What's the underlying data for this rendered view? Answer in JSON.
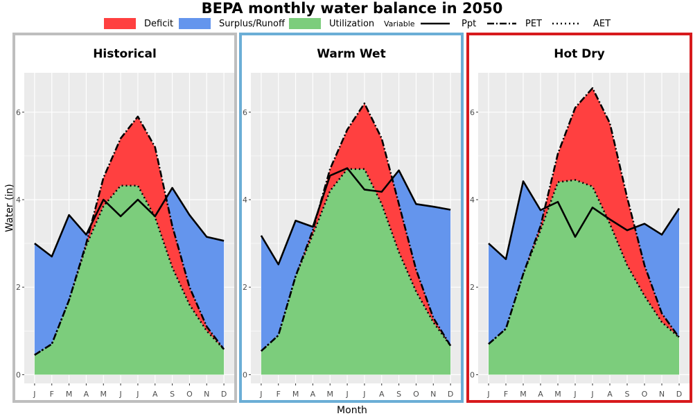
{
  "chart_data": {
    "type": "area",
    "title": "BEPA monthly water balance in 2050",
    "xlabel": "Month",
    "ylabel": "Water (in)",
    "ylim": [
      -0.2,
      6.9
    ],
    "yticks": [
      0,
      2,
      4,
      6
    ],
    "categories": [
      "J",
      "F",
      "M",
      "A",
      "M",
      "J",
      "J",
      "A",
      "S",
      "O",
      "N",
      "D"
    ],
    "fill_legend": [
      {
        "label": "Deficit",
        "color": "#ff4040"
      },
      {
        "label": "Surplus/Runoff",
        "color": "#6495ed"
      },
      {
        "label": "Utilization",
        "color": "#7ccd7c"
      }
    ],
    "line_legend_title": "Variable",
    "line_legend": [
      {
        "label": "Ppt",
        "style": "solid"
      },
      {
        "label": "PET",
        "style": "dashdot"
      },
      {
        "label": "AET",
        "style": "dotted"
      }
    ],
    "panel_border_colors": [
      "#bebebe",
      "#6baed6",
      "#d7191c"
    ],
    "panels": [
      {
        "title": "Historical",
        "Ppt": [
          3.0,
          2.7,
          3.65,
          3.2,
          4.0,
          3.62,
          4.0,
          3.62,
          4.27,
          3.65,
          3.15,
          3.06
        ],
        "PET": [
          0.45,
          0.7,
          1.7,
          3.0,
          4.5,
          5.4,
          5.9,
          5.2,
          3.4,
          2.0,
          1.1,
          0.58
        ],
        "AET": [
          0.45,
          0.7,
          1.7,
          2.95,
          3.85,
          4.32,
          4.32,
          3.6,
          2.45,
          1.6,
          1.0,
          0.58
        ]
      },
      {
        "title": "Warm Wet",
        "Ppt": [
          3.18,
          2.52,
          3.52,
          3.38,
          4.55,
          4.72,
          4.23,
          4.18,
          4.67,
          3.9,
          3.84,
          3.77
        ],
        "PET": [
          0.54,
          0.9,
          2.25,
          3.3,
          4.7,
          5.6,
          6.2,
          5.4,
          3.9,
          2.4,
          1.3,
          0.66
        ],
        "AET": [
          0.54,
          0.9,
          2.25,
          3.2,
          4.2,
          4.7,
          4.7,
          3.9,
          2.8,
          1.9,
          1.2,
          0.66
        ]
      },
      {
        "title": "Hot Dry",
        "Ppt": [
          3.0,
          2.64,
          4.42,
          3.76,
          3.95,
          3.15,
          3.82,
          3.55,
          3.3,
          3.45,
          3.2,
          3.8
        ],
        "PET": [
          0.7,
          1.05,
          2.3,
          3.4,
          5.05,
          6.1,
          6.55,
          5.75,
          4.05,
          2.5,
          1.4,
          0.85
        ],
        "AET": [
          0.7,
          1.05,
          2.3,
          3.3,
          4.4,
          4.45,
          4.3,
          3.45,
          2.5,
          1.8,
          1.2,
          0.85
        ]
      }
    ]
  }
}
